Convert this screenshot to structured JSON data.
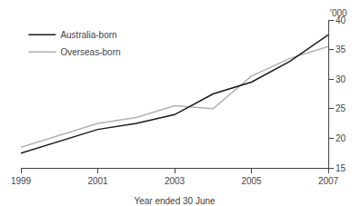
{
  "chart_data": {
    "type": "line",
    "x_label": "Year ended 30 June",
    "y_label": "'000",
    "x": [
      1999,
      2000,
      2001,
      2002,
      2003,
      2004,
      2005,
      2006,
      2007
    ],
    "series": [
      {
        "name": "Overseas-born",
        "color": "#b0b0b0",
        "values": [
          18.5,
          20.5,
          22.5,
          23.5,
          25.5,
          25.0,
          30.5,
          33.5,
          35.5
        ]
      },
      {
        "name": "Australia-born",
        "color": "#1a1a1a",
        "values": [
          17.5,
          19.5,
          21.5,
          22.5,
          24.0,
          27.5,
          29.5,
          33.0,
          37.5
        ]
      }
    ],
    "xlim": [
      1999,
      2007
    ],
    "xticks": [
      1999,
      2001,
      2003,
      2005,
      2007
    ],
    "ylim": [
      15,
      40
    ],
    "yticks": [
      15,
      20,
      25,
      30,
      35,
      40
    ],
    "grid": false,
    "legend": "upper left"
  }
}
